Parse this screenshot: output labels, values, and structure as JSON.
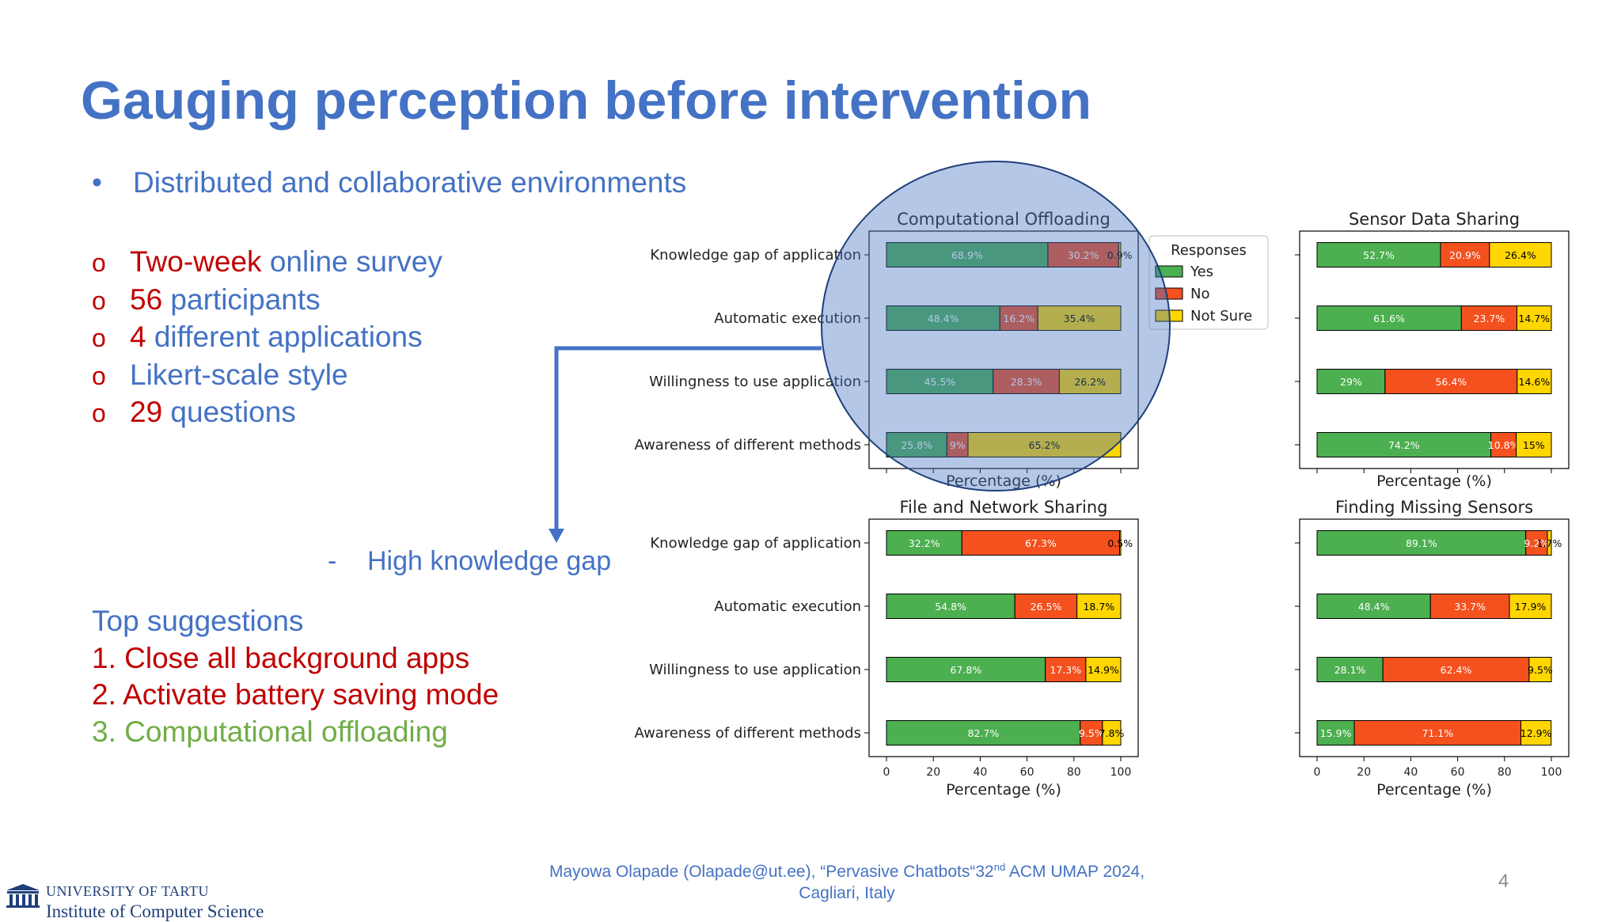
{
  "slide": {
    "title": "Gauging perception before intervention",
    "bullet_main": "Distributed and collaborative environments",
    "bullet_marker": "•",
    "list_marker": "o",
    "list": [
      {
        "hl": "Two-week",
        "rest": " online survey"
      },
      {
        "hl": "56",
        "rest": " participants"
      },
      {
        "hl": "4",
        "rest": " different applications"
      },
      {
        "hl": "",
        "rest": "Likert-scale style"
      },
      {
        "hl": "29",
        "rest": " questions"
      }
    ],
    "knowledge_gap_dash": "-",
    "knowledge_gap": "High knowledge gap",
    "suggestions_title": "Top suggestions",
    "suggestions": [
      "1. Close all background apps",
      "2. Activate battery saving mode",
      "3. Computational offloading"
    ],
    "footer_pre": "Mayowa Olapade (Olapade@ut.ee), “Pervasive Chatbots“32",
    "footer_sup": "nd",
    "footer_post": " ACM UMAP 2024,",
    "footer_line2": "Cagliari, Italy",
    "page_number": "4",
    "university_line1": "UNIVERSITY OF TARTU",
    "university_line2": "Institute of Computer Science"
  },
  "colors": {
    "title": "#4472c4",
    "red": "#c00000",
    "blue": "#4472c4",
    "green": "#70ad47",
    "yes": "#4caf50",
    "no": "#f4511e",
    "not_sure": "#ffd600",
    "highlight_circle": "#4472c4"
  },
  "legend": {
    "title": "Responses",
    "items": [
      "Yes",
      "No",
      "Not Sure"
    ]
  },
  "chart_data": [
    {
      "type": "bar",
      "orientation": "horizontal-stacked",
      "title": "Computational Offloading",
      "categories": [
        "Knowledge gap of application",
        "Automatic execution",
        "Willingness to use application",
        "Awareness of different methods"
      ],
      "series": [
        {
          "name": "Yes",
          "values": [
            68.9,
            48.4,
            45.5,
            25.8
          ]
        },
        {
          "name": "No",
          "values": [
            30.2,
            16.2,
            28.3,
            9
          ]
        },
        {
          "name": "Not Sure",
          "values": [
            0.9,
            35.4,
            26.2,
            65.2
          ]
        }
      ],
      "labels": [
        [
          "68.9%",
          "30.2%",
          "0.9%"
        ],
        [
          "48.4%",
          "16.2%",
          "35.4%"
        ],
        [
          "45.5%",
          "28.3%",
          "26.2%"
        ],
        [
          "25.8%",
          "9%",
          "65.2%"
        ]
      ],
      "xlabel": "Percentage (%)",
      "xlim": [
        0,
        100
      ],
      "show_ticks": false,
      "show_ylabels": true,
      "highlighted": true
    },
    {
      "type": "bar",
      "orientation": "horizontal-stacked",
      "title": "Sensor Data Sharing",
      "categories": [
        "Knowledge gap of application",
        "Automatic execution",
        "Willingness to use application",
        "Awareness of different methods"
      ],
      "series": [
        {
          "name": "Yes",
          "values": [
            52.7,
            61.6,
            29,
            74.2
          ]
        },
        {
          "name": "No",
          "values": [
            20.9,
            23.7,
            56.4,
            10.8
          ]
        },
        {
          "name": "Not Sure",
          "values": [
            26.4,
            14.7,
            14.6,
            15
          ]
        }
      ],
      "labels": [
        [
          "52.7%",
          "20.9%",
          "26.4%"
        ],
        [
          "61.6%",
          "23.7%",
          "14.7%"
        ],
        [
          "29%",
          "56.4%",
          "14.6%"
        ],
        [
          "74.2%",
          "10.8%",
          "15%"
        ]
      ],
      "xlabel": "Percentage (%)",
      "xlim": [
        0,
        100
      ],
      "show_ticks": false,
      "show_ylabels": false,
      "highlighted": false
    },
    {
      "type": "bar",
      "orientation": "horizontal-stacked",
      "title": "File and Network Sharing",
      "categories": [
        "Knowledge gap of application",
        "Automatic execution",
        "Willingness to use application",
        "Awareness of different methods"
      ],
      "series": [
        {
          "name": "Yes",
          "values": [
            32.2,
            54.8,
            67.8,
            82.7
          ]
        },
        {
          "name": "No",
          "values": [
            67.3,
            26.5,
            17.3,
            9.5
          ]
        },
        {
          "name": "Not Sure",
          "values": [
            0.5,
            18.7,
            14.9,
            7.8
          ]
        }
      ],
      "labels": [
        [
          "32.2%",
          "67.3%",
          "0.5%"
        ],
        [
          "54.8%",
          "26.5%",
          "18.7%"
        ],
        [
          "67.8%",
          "17.3%",
          "14.9%"
        ],
        [
          "82.7%",
          "9.5%",
          "7.8%"
        ]
      ],
      "xlabel": "Percentage (%)",
      "xlim": [
        0,
        100
      ],
      "xticks": [
        "0",
        "20",
        "40",
        "60",
        "80",
        "100"
      ],
      "show_ticks": true,
      "show_ylabels": true,
      "highlighted": false
    },
    {
      "type": "bar",
      "orientation": "horizontal-stacked",
      "title": "Finding Missing Sensors",
      "categories": [
        "Knowledge gap of application",
        "Automatic execution",
        "Willingness to use application",
        "Awareness of different methods"
      ],
      "series": [
        {
          "name": "Yes",
          "values": [
            89.1,
            48.4,
            28.1,
            15.9
          ]
        },
        {
          "name": "No",
          "values": [
            9.2,
            33.7,
            62.4,
            71.1
          ]
        },
        {
          "name": "Not Sure",
          "values": [
            1.7,
            17.9,
            9.5,
            12.9
          ]
        }
      ],
      "labels": [
        [
          "89.1%",
          "9.2%",
          "1.7%"
        ],
        [
          "48.4%",
          "33.7%",
          "17.9%"
        ],
        [
          "28.1%",
          "62.4%",
          "9.5%"
        ],
        [
          "15.9%",
          "71.1%",
          "12.9%"
        ]
      ],
      "xlabel": "Percentage (%)",
      "xlim": [
        0,
        100
      ],
      "xticks": [
        "0",
        "20",
        "40",
        "60",
        "80",
        "100"
      ],
      "show_ticks": true,
      "show_ylabels": false,
      "highlighted": false
    }
  ]
}
